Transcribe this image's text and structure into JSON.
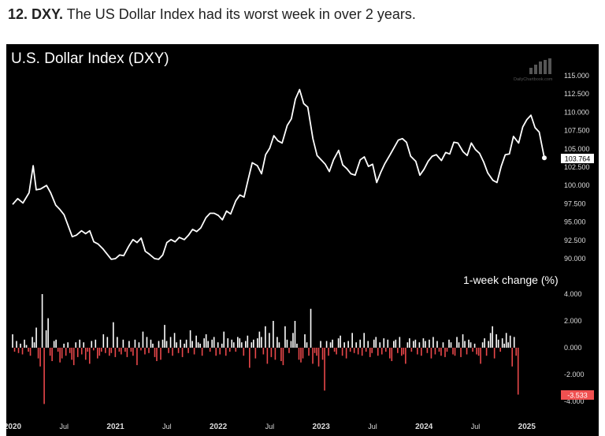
{
  "headline": {
    "prefix": "12. DXY.",
    "text": "The US Dollar Index had its worst week in over 2 years."
  },
  "watermark": "DailyChartbook.com",
  "colors": {
    "background": "#000000",
    "price_line": "#ffffff",
    "positive_bar": "#ffffff",
    "negative_bar": "#e8474a",
    "last_label_bg": "#ffffff",
    "last_change_bg": "#f05050"
  },
  "chart_data": [
    {
      "type": "line",
      "title": "U.S. Dollar Index (DXY)",
      "ylim": [
        90,
        115
      ],
      "y_ticks": [
        "115.000",
        "112.500",
        "110.000",
        "107.500",
        "105.000",
        "102.500",
        "100.000",
        "97.500",
        "95.000",
        "92.500",
        "90.000"
      ],
      "x_ticks": [
        "2020",
        "Jul",
        "2021",
        "Jul",
        "2022",
        "Jul",
        "2023",
        "Jul",
        "2024",
        "Jul",
        "2025"
      ],
      "last_value": 103.764,
      "last_value_label": "103.764",
      "points": [
        [
          2020.0,
          97.4
        ],
        [
          2020.05,
          98.2
        ],
        [
          2020.1,
          97.6
        ],
        [
          2020.16,
          99.0
        ],
        [
          2020.2,
          102.7
        ],
        [
          2020.23,
          99.4
        ],
        [
          2020.27,
          99.5
        ],
        [
          2020.33,
          100.0
        ],
        [
          2020.37,
          99.0
        ],
        [
          2020.42,
          97.3
        ],
        [
          2020.46,
          96.7
        ],
        [
          2020.5,
          96.0
        ],
        [
          2020.54,
          94.5
        ],
        [
          2020.58,
          93.0
        ],
        [
          2020.62,
          93.2
        ],
        [
          2020.67,
          93.8
        ],
        [
          2020.71,
          93.4
        ],
        [
          2020.75,
          93.8
        ],
        [
          2020.79,
          92.3
        ],
        [
          2020.83,
          92.0
        ],
        [
          2020.88,
          91.3
        ],
        [
          2020.92,
          90.6
        ],
        [
          2020.96,
          89.9
        ],
        [
          2021.0,
          90.0
        ],
        [
          2021.04,
          90.5
        ],
        [
          2021.08,
          90.4
        ],
        [
          2021.13,
          91.7
        ],
        [
          2021.17,
          92.6
        ],
        [
          2021.21,
          92.2
        ],
        [
          2021.25,
          92.8
        ],
        [
          2021.29,
          91.0
        ],
        [
          2021.33,
          90.6
        ],
        [
          2021.38,
          90.0
        ],
        [
          2021.42,
          89.9
        ],
        [
          2021.46,
          90.5
        ],
        [
          2021.5,
          92.2
        ],
        [
          2021.54,
          92.6
        ],
        [
          2021.58,
          92.3
        ],
        [
          2021.62,
          92.9
        ],
        [
          2021.67,
          92.6
        ],
        [
          2021.71,
          93.2
        ],
        [
          2021.75,
          94.0
        ],
        [
          2021.79,
          93.7
        ],
        [
          2021.83,
          94.2
        ],
        [
          2021.88,
          95.6
        ],
        [
          2021.92,
          96.2
        ],
        [
          2021.96,
          96.2
        ],
        [
          2022.0,
          95.9
        ],
        [
          2022.04,
          95.3
        ],
        [
          2022.08,
          96.5
        ],
        [
          2022.12,
          96.1
        ],
        [
          2022.17,
          97.9
        ],
        [
          2022.21,
          98.7
        ],
        [
          2022.25,
          98.4
        ],
        [
          2022.29,
          100.8
        ],
        [
          2022.33,
          103.1
        ],
        [
          2022.38,
          102.7
        ],
        [
          2022.42,
          101.6
        ],
        [
          2022.46,
          104.2
        ],
        [
          2022.5,
          105.1
        ],
        [
          2022.54,
          106.8
        ],
        [
          2022.58,
          106.1
        ],
        [
          2022.62,
          105.8
        ],
        [
          2022.67,
          108.2
        ],
        [
          2022.71,
          109.1
        ],
        [
          2022.75,
          111.8
        ],
        [
          2022.79,
          113.1
        ],
        [
          2022.83,
          111.2
        ],
        [
          2022.87,
          110.7
        ],
        [
          2022.92,
          106.4
        ],
        [
          2022.96,
          104.1
        ],
        [
          2023.0,
          103.5
        ],
        [
          2023.04,
          102.9
        ],
        [
          2023.08,
          101.9
        ],
        [
          2023.12,
          103.5
        ],
        [
          2023.17,
          104.8
        ],
        [
          2023.21,
          102.8
        ],
        [
          2023.25,
          102.3
        ],
        [
          2023.29,
          101.6
        ],
        [
          2023.33,
          101.4
        ],
        [
          2023.38,
          103.5
        ],
        [
          2023.42,
          103.9
        ],
        [
          2023.46,
          102.6
        ],
        [
          2023.5,
          102.9
        ],
        [
          2023.54,
          100.4
        ],
        [
          2023.58,
          101.8
        ],
        [
          2023.62,
          103.0
        ],
        [
          2023.67,
          104.2
        ],
        [
          2023.71,
          105.2
        ],
        [
          2023.75,
          106.2
        ],
        [
          2023.79,
          106.4
        ],
        [
          2023.83,
          105.9
        ],
        [
          2023.87,
          104.0
        ],
        [
          2023.92,
          103.3
        ],
        [
          2023.96,
          101.4
        ],
        [
          2024.0,
          102.2
        ],
        [
          2024.04,
          103.3
        ],
        [
          2024.08,
          104.0
        ],
        [
          2024.12,
          104.2
        ],
        [
          2024.17,
          103.4
        ],
        [
          2024.21,
          104.5
        ],
        [
          2024.25,
          104.3
        ],
        [
          2024.29,
          105.9
        ],
        [
          2024.33,
          105.8
        ],
        [
          2024.38,
          104.6
        ],
        [
          2024.42,
          104.1
        ],
        [
          2024.46,
          105.8
        ],
        [
          2024.5,
          104.9
        ],
        [
          2024.54,
          104.4
        ],
        [
          2024.58,
          103.2
        ],
        [
          2024.62,
          101.7
        ],
        [
          2024.67,
          100.7
        ],
        [
          2024.71,
          100.4
        ],
        [
          2024.75,
          102.6
        ],
        [
          2024.79,
          104.2
        ],
        [
          2024.83,
          104.3
        ],
        [
          2024.87,
          106.7
        ],
        [
          2024.92,
          105.8
        ],
        [
          2024.96,
          108.0
        ],
        [
          2025.0,
          109.0
        ],
        [
          2025.04,
          109.6
        ],
        [
          2025.08,
          107.9
        ],
        [
          2025.12,
          107.3
        ],
        [
          2025.17,
          103.76
        ]
      ]
    },
    {
      "type": "bar",
      "title": "1-week change (%)",
      "ylim": [
        -4,
        4
      ],
      "y_ticks": [
        "4.000",
        "2.000",
        "0.000",
        "-2.000",
        "-4.000"
      ],
      "last_value": -3.533,
      "last_value_label": "-3.533",
      "start": 2020.0,
      "step": 0.0192,
      "values": [
        1.0,
        -0.3,
        0.5,
        -0.4,
        0.3,
        -0.5,
        0.6,
        0.2,
        -0.3,
        -0.6,
        0.8,
        0.4,
        1.5,
        -0.8,
        -1.4,
        4.0,
        -4.2,
        1.3,
        2.2,
        -0.6,
        -1.0,
        0.5,
        0.6,
        -0.3,
        -1.1,
        -0.8,
        0.3,
        -0.6,
        0.4,
        -0.4,
        -0.9,
        -1.3,
        0.4,
        -0.7,
        0.6,
        -0.5,
        0.4,
        -0.9,
        -0.3,
        -1.2,
        0.5,
        -0.2,
        0.6,
        -0.8,
        -0.6,
        -0.3,
        1.0,
        -0.4,
        0.8,
        -0.6,
        -0.4,
        1.9,
        -0.7,
        0.8,
        -0.3,
        -0.5,
        0.6,
        -0.3,
        -0.7,
        0.5,
        -0.3,
        -0.6,
        0.6,
        -1.3,
        0.4,
        -0.2,
        1.2,
        -0.5,
        0.8,
        -0.4,
        0.6,
        0.3,
        -0.7,
        -1.0,
        0.5,
        -0.9,
        0.6,
        1.7,
        0.5,
        -0.4,
        0.8,
        -0.6,
        1.1,
        0.4,
        -0.4,
        0.6,
        -0.7,
        0.3,
        0.6,
        -0.4,
        1.3,
        0.5,
        -0.5,
        0.9,
        0.4,
        0.3,
        -0.6,
        0.7,
        1.0,
        0.5,
        -0.3,
        0.6,
        0.8,
        -0.6,
        0.4,
        -0.5,
        0.3,
        1.2,
        -0.6,
        0.7,
        -0.3,
        0.6,
        0.4,
        -0.3,
        0.8,
        0.7,
        0.4,
        -0.6,
        0.5,
        0.9,
        -1.5,
        0.4,
        0.6,
        -0.8,
        0.7,
        1.2,
        0.8,
        -0.5,
        1.6,
        -1.2,
        1.1,
        -0.7,
        2.0,
        -0.9,
        0.8,
        0.4,
        -1.0,
        -1.3,
        1.6,
        0.6,
        -0.4,
        0.5,
        1.1,
        2.0,
        0.3,
        -0.9,
        -1.1,
        -0.8,
        1.0,
        0.4,
        -0.6,
        2.9,
        -1.2,
        -0.4,
        -0.6,
        -1.4,
        0.5,
        -0.9,
        -3.2,
        0.5,
        -0.6,
        0.4,
        0.6,
        -0.3,
        -0.5,
        0.7,
        0.9,
        -0.6,
        0.4,
        -0.8,
        0.5,
        -0.3,
        1.1,
        -0.4,
        0.4,
        -0.5,
        0.6,
        -0.6,
        1.1,
        -0.3,
        0.5,
        -0.7,
        -0.4,
        0.6,
        0.8,
        -0.6,
        0.4,
        -0.5,
        0.7,
        -0.3,
        0.6,
        -0.8,
        -1.0,
        0.5,
        0.6,
        -0.4,
        0.8,
        -0.6,
        -0.5,
        -1.2,
        0.4,
        0.7,
        -0.3,
        0.5,
        0.6,
        -0.5,
        0.4,
        -0.6,
        0.7,
        0.5,
        -0.4,
        0.6,
        -0.8,
        0.8,
        -0.5,
        0.5,
        -0.3,
        -0.6,
        0.4,
        -0.7,
        -0.3,
        0.6,
        0.4,
        -0.5,
        -0.6,
        0.8,
        0.4,
        -0.7,
        1.0,
        0.5,
        -0.5,
        0.6,
        0.4,
        -0.3,
        0.3,
        -0.5,
        -0.6,
        -1.2,
        0.4,
        0.7,
        -0.6,
        0.5,
        1.1,
        1.6,
        -0.8,
        1.0,
        0.6,
        -0.3,
        0.7,
        0.3,
        1.1,
        0.4,
        0.9,
        -1.4,
        0.8,
        -0.6,
        -3.5
      ]
    }
  ]
}
